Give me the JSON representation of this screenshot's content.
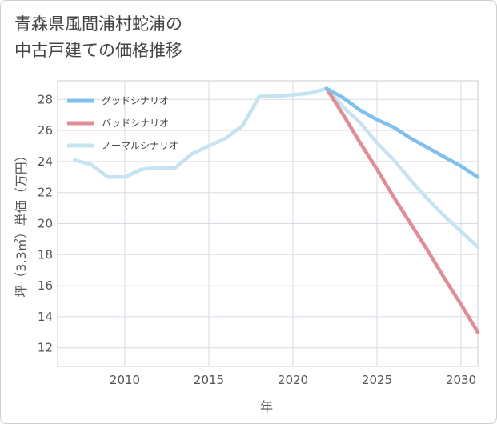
{
  "title": {
    "line1": "青森県風間浦村蛇浦の",
    "line2": "中古戸建ての価格推移"
  },
  "chart_data": {
    "type": "line",
    "xlabel": "年",
    "ylabel": "坪（3.3㎡）単価（万円）",
    "xlim": [
      2006,
      2031
    ],
    "ylim": [
      10.8,
      29.2
    ],
    "xticks": [
      2010,
      2015,
      2020,
      2025,
      2030
    ],
    "xtick_labels": [
      "2010",
      "2015",
      "2020",
      "2025",
      "2030"
    ],
    "yticks": [
      12,
      14,
      16,
      18,
      20,
      22,
      24,
      26,
      28
    ],
    "ytick_labels": [
      "12",
      "14",
      "16",
      "18",
      "20",
      "22",
      "24",
      "26",
      "28"
    ],
    "grid": true,
    "legend_position": "top-left",
    "series": [
      {
        "name": "グッドシナリオ",
        "color": "#7fc1ea",
        "x": [
          2022,
          2023,
          2024,
          2025,
          2026,
          2027,
          2028,
          2029,
          2030,
          2031
        ],
        "y": [
          28.7,
          28.1,
          27.3,
          26.7,
          26.2,
          25.5,
          24.9,
          24.3,
          23.7,
          23.0
        ]
      },
      {
        "name": "バッドシナリオ",
        "color": "#e08d96",
        "x": [
          2022,
          2023,
          2024,
          2025,
          2026,
          2027,
          2028,
          2029,
          2030,
          2031
        ],
        "y": [
          28.7,
          27.0,
          25.2,
          23.5,
          21.7,
          20.0,
          18.3,
          16.5,
          14.8,
          13.0
        ]
      },
      {
        "name": "ノーマルシナリオ",
        "color": "#c5e3f0",
        "x": [
          2007,
          2008,
          2009,
          2010,
          2011,
          2012,
          2013,
          2014,
          2015,
          2016,
          2017,
          2018,
          2019,
          2020,
          2021,
          2022,
          2023,
          2024,
          2025,
          2026,
          2027,
          2028,
          2029,
          2030,
          2031
        ],
        "y": [
          24.1,
          23.8,
          23.0,
          23.0,
          23.5,
          23.6,
          23.6,
          24.5,
          25.0,
          25.5,
          26.3,
          28.2,
          28.2,
          28.3,
          28.4,
          28.7,
          27.5,
          26.5,
          25.2,
          24.1,
          22.8,
          21.6,
          20.5,
          19.5,
          18.5
        ]
      }
    ]
  }
}
